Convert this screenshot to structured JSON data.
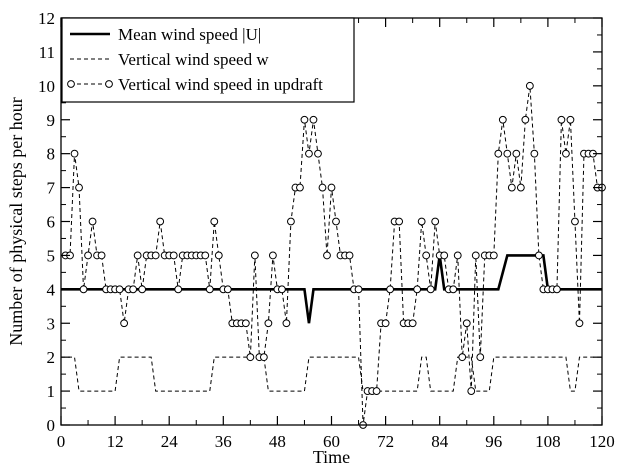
{
  "chart_data": {
    "type": "line",
    "title": "",
    "xlabel": "Time",
    "ylabel": "Number of physical steps per hour",
    "xlim": [
      0,
      120
    ],
    "ylim": [
      0,
      12
    ],
    "xticks": [
      0,
      12,
      24,
      36,
      48,
      60,
      72,
      84,
      96,
      108,
      120
    ],
    "yticks": [
      0,
      1,
      2,
      3,
      4,
      5,
      6,
      7,
      8,
      9,
      10,
      11,
      12
    ],
    "grid": false,
    "legend_position": "top-left",
    "series": [
      {
        "name": "Mean wind speed |U|",
        "style": "solid-thick",
        "color": "#000000",
        "x": [
          0,
          54,
          55,
          56,
          83,
          84,
          85,
          97,
          98,
          99,
          106,
          107,
          108,
          120
        ],
        "y": [
          4,
          4,
          3,
          4,
          4,
          5,
          4,
          4,
          4.5,
          5,
          5,
          5,
          4,
          4
        ]
      },
      {
        "name": "Vertical wind speed w",
        "style": "dashed",
        "color": "#000000",
        "x": [
          0,
          3,
          4,
          12,
          13,
          20,
          21,
          33,
          34,
          45,
          46,
          54,
          55,
          66,
          67,
          68,
          79,
          80,
          81,
          82,
          87,
          88,
          91,
          92,
          95,
          96,
          112,
          113,
          114,
          115,
          120
        ],
        "y": [
          2,
          2,
          1,
          1,
          2,
          2,
          1,
          1,
          2,
          2,
          1,
          1,
          2,
          2,
          1,
          1,
          1,
          2,
          2,
          1,
          1,
          2,
          2,
          1,
          1,
          2,
          2,
          1,
          1,
          2,
          2
        ]
      },
      {
        "name": "Vertical wind speed in updraft",
        "style": "dashed-circles",
        "color": "#000000",
        "x": [
          1,
          2,
          3,
          4,
          5,
          6,
          7,
          8,
          9,
          10,
          11,
          12,
          13,
          14,
          15,
          16,
          17,
          18,
          19,
          20,
          21,
          22,
          23,
          24,
          25,
          26,
          27,
          28,
          29,
          30,
          31,
          32,
          33,
          34,
          35,
          36,
          37,
          38,
          39,
          40,
          41,
          42,
          43,
          44,
          45,
          46,
          47,
          48,
          49,
          50,
          51,
          52,
          53,
          54,
          55,
          56,
          57,
          58,
          59,
          60,
          61,
          62,
          63,
          64,
          65,
          66,
          67,
          68,
          69,
          70,
          71,
          72,
          73,
          74,
          75,
          76,
          77,
          78,
          79,
          80,
          81,
          82,
          83,
          84,
          85,
          86,
          87,
          88,
          89,
          90,
          91,
          92,
          93,
          94,
          95,
          96,
          97,
          98,
          99,
          100,
          101,
          102,
          103,
          104,
          105,
          106,
          107,
          108,
          109,
          110,
          111,
          112,
          113,
          114,
          115,
          116,
          117,
          118,
          119,
          120
        ],
        "y": [
          5,
          5,
          8,
          7,
          4,
          5,
          6,
          5,
          5,
          4,
          4,
          4,
          4,
          3,
          4,
          4,
          5,
          4,
          5,
          5,
          5,
          6,
          5,
          5,
          5,
          4,
          5,
          5,
          5,
          5,
          5,
          5,
          4,
          6,
          5,
          4,
          4,
          3,
          3,
          3,
          3,
          2,
          5,
          2,
          2,
          3,
          5,
          4,
          4,
          3,
          6,
          7,
          7,
          9,
          8,
          9,
          8,
          7,
          5,
          7,
          6,
          5,
          5,
          5,
          4,
          4,
          0,
          1,
          1,
          1,
          3,
          3,
          4,
          6,
          6,
          3,
          3,
          3,
          4,
          6,
          5,
          4,
          6,
          5,
          5,
          4,
          4,
          5,
          2,
          3,
          1,
          5,
          2,
          5,
          5,
          5,
          8,
          9,
          8,
          7,
          8,
          7,
          9,
          10,
          8,
          5,
          4,
          4,
          4,
          4,
          9,
          8,
          9,
          6,
          3,
          8,
          8,
          8,
          7,
          7
        ]
      }
    ]
  }
}
